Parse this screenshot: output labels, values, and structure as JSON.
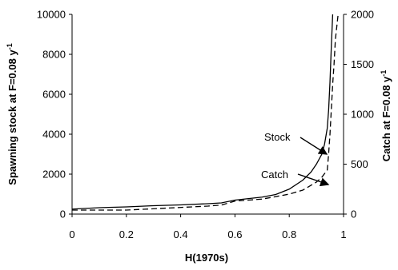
{
  "chart_data": {
    "type": "line",
    "title": "",
    "xlabel": "H(1970s)",
    "ylabel": "Spawning stock at F=0.08 y",
    "ylabel_superscript": "-1",
    "ylabel_right": "Catch at F=0.08 y",
    "ylabel_right_superscript": "-1",
    "xlim": [
      0,
      1
    ],
    "ylim": [
      0,
      10000
    ],
    "ylim_right": [
      0,
      2000
    ],
    "x_ticks": [
      "0",
      "0.2",
      "0.4",
      "0.6",
      "0.8",
      "1"
    ],
    "y_ticks": [
      "0",
      "2000",
      "4000",
      "6000",
      "8000",
      "10000"
    ],
    "y_ticks_right": [
      "0",
      "500",
      "1000",
      "1500",
      "2000"
    ],
    "grid": false,
    "series": [
      {
        "name": "Stock",
        "axis": "left",
        "style": "solid",
        "x": [
          0,
          0.1,
          0.2,
          0.3,
          0.4,
          0.5,
          0.55,
          0.6,
          0.7,
          0.75,
          0.8,
          0.85,
          0.88,
          0.9,
          0.92,
          0.93,
          0.94,
          0.945,
          0.95,
          0.955,
          0.96
        ],
        "y": [
          250,
          320,
          360,
          420,
          460,
          520,
          560,
          700,
          850,
          980,
          1250,
          1700,
          2100,
          2500,
          3000,
          3500,
          4300,
          5200,
          6600,
          8400,
          10000
        ]
      },
      {
        "name": "Catch",
        "axis": "right",
        "style": "dashed",
        "x": [
          0,
          0.2,
          0.35,
          0.5,
          0.55,
          0.6,
          0.7,
          0.8,
          0.85,
          0.9,
          0.92,
          0.94,
          0.945,
          0.95,
          0.955,
          0.96,
          0.965,
          0.97,
          0.98
        ],
        "y": [
          40,
          40,
          60,
          80,
          90,
          130,
          150,
          200,
          240,
          320,
          370,
          440,
          600,
          800,
          1050,
          1300,
          1500,
          1750,
          2000
        ]
      }
    ],
    "annotations": [
      {
        "text": "Stock",
        "target_series": "Stock"
      },
      {
        "text": "Catch",
        "target_series": "Catch"
      }
    ]
  }
}
